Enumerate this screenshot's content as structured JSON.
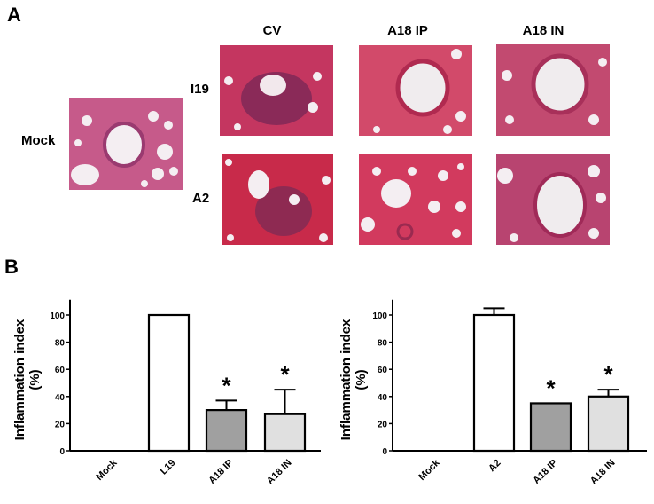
{
  "panel_a": {
    "letter": "A",
    "column_labels": [
      "CV",
      "A18 IP",
      "A18 IN"
    ],
    "row_labels": [
      "I19",
      "A2"
    ],
    "mock_label": "Mock",
    "images": [
      {
        "id": "mock",
        "label": "Mock lung section (H&E)"
      },
      {
        "id": "i19-cv",
        "label": "I19 / CV lung section"
      },
      {
        "id": "i19-a18ip",
        "label": "I19 / A18 IP lung section"
      },
      {
        "id": "i19-a18in",
        "label": "I19 / A18 IN lung section"
      },
      {
        "id": "a2-cv",
        "label": "A2 / CV lung section"
      },
      {
        "id": "a2-a18ip",
        "label": "A2 / A18 IP lung section"
      },
      {
        "id": "a2-a18in",
        "label": "A2 / A18 IN lung section"
      }
    ],
    "colors": {
      "tissue": "#c8365a",
      "tissue_dark": "#8e2a55",
      "lumen": "#f2eef0"
    }
  },
  "panel_b": {
    "letter": "B"
  },
  "chart_data": [
    {
      "type": "bar",
      "title": "",
      "xlabel": "",
      "ylabel": "Inflammation index (%)",
      "ylabel_lines": [
        "Inflammation index",
        "(%)"
      ],
      "categories": [
        "Mock",
        "L19",
        "A18 IP",
        "A18 IN"
      ],
      "values": [
        0,
        100,
        30,
        27
      ],
      "error_upper": [
        null,
        null,
        37,
        45
      ],
      "significance": [
        "",
        "",
        "*",
        "*"
      ],
      "bar_colors": [
        "#ffffff",
        "#ffffff",
        "#a0a0a0",
        "#e0e0e0"
      ],
      "ylim": [
        0,
        110
      ],
      "yticks": [
        0,
        20,
        40,
        60,
        80,
        100
      ],
      "grid": false,
      "legend": null
    },
    {
      "type": "bar",
      "title": "",
      "xlabel": "",
      "ylabel": "Inflammation index (%)",
      "ylabel_lines": [
        "Inflammation index",
        "(%)"
      ],
      "categories": [
        "Mock",
        "A2",
        "A18 IP",
        "A18 IN"
      ],
      "values": [
        0,
        100,
        35,
        40
      ],
      "error_upper": [
        null,
        105,
        null,
        45
      ],
      "significance": [
        "",
        "",
        "*",
        "*"
      ],
      "bar_colors": [
        "#ffffff",
        "#ffffff",
        "#a0a0a0",
        "#e0e0e0"
      ],
      "ylim": [
        0,
        110
      ],
      "yticks": [
        0,
        20,
        40,
        60,
        80,
        100
      ],
      "grid": false,
      "legend": null
    }
  ]
}
